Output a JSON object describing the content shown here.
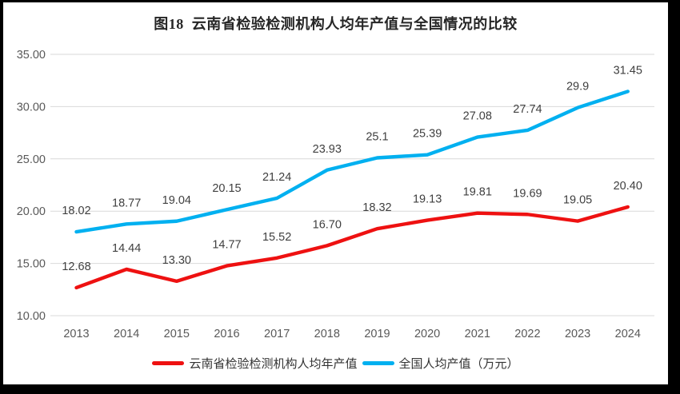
{
  "title": "图18  云南省检验检测机构人均年产值与全国情况的比较",
  "chart_data": {
    "type": "line",
    "categories": [
      "2013",
      "2014",
      "2015",
      "2016",
      "2017",
      "2018",
      "2019",
      "2020",
      "2021",
      "2022",
      "2023",
      "2024"
    ],
    "series": [
      {
        "name": "云南省检验检测机构人均年产值",
        "color": "#ee1111",
        "values": [
          12.68,
          14.44,
          13.3,
          14.77,
          15.52,
          16.7,
          18.32,
          19.13,
          19.81,
          19.69,
          19.05,
          20.4
        ],
        "labels": [
          "12.68",
          "14.44",
          "13.30",
          "14.77",
          "15.52",
          "16.70",
          "18.32",
          "19.13",
          "19.81",
          "19.69",
          "19.05",
          "20.40"
        ]
      },
      {
        "name": "全国人均产值（万元）",
        "color": "#00b0f0",
        "values": [
          18.02,
          18.77,
          19.04,
          20.15,
          21.24,
          23.93,
          25.1,
          25.39,
          27.08,
          27.74,
          29.9,
          31.45
        ],
        "labels": [
          "18.02",
          "18.77",
          "19.04",
          "20.15",
          "21.24",
          "23.93",
          "25.1",
          "25.39",
          "27.08",
          "27.74",
          "29.9",
          "31.45"
        ]
      }
    ],
    "ylim": [
      10,
      35
    ],
    "ytick_step": 5,
    "ytick_labels": [
      "10.00",
      "15.00",
      "20.00",
      "25.00",
      "30.00",
      "35.00"
    ],
    "grid": true,
    "legend_position": "bottom",
    "colors": {
      "gridline": "#d9d9d9",
      "axis_text": "#595959",
      "data_label_text": "#3f3f3f",
      "plot_background": "#ffffff",
      "page_background": "#000000"
    }
  }
}
